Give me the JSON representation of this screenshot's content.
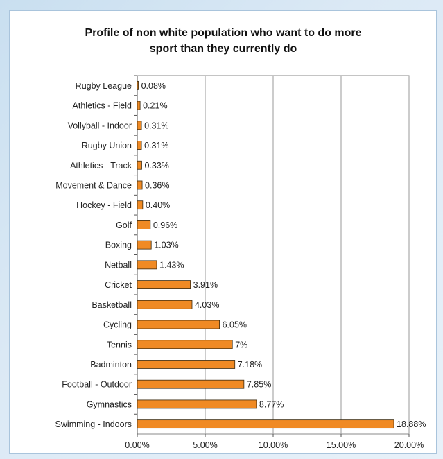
{
  "chart_data": {
    "type": "bar",
    "orientation": "horizontal",
    "title": "Profile of non white population who want to do more sport than they currently do",
    "title_lines": [
      "Profile of non white population who want to do more",
      "sport than they currently do"
    ],
    "categories": [
      "Rugby League",
      "Athletics - Field",
      "Vollyball - Indoor",
      "Rugby Union",
      "Athletics - Track",
      "Movement & Dance",
      "Hockey - Field",
      "Golf",
      "Boxing",
      "Netball",
      "Cricket",
      "Basketball",
      "Cycling",
      "Tennis",
      "Badminton",
      "Football - Outdoor",
      "Gymnastics",
      "Swimming - Indoors"
    ],
    "values": [
      0.08,
      0.21,
      0.31,
      0.31,
      0.33,
      0.36,
      0.4,
      0.96,
      1.03,
      1.43,
      3.91,
      4.03,
      6.05,
      7,
      7.18,
      7.85,
      8.77,
      18.88
    ],
    "data_labels": [
      "0.08%",
      "0.21%",
      "0.31%",
      "0.31%",
      "0.33%",
      "0.36%",
      "0.40%",
      "0.96%",
      "1.03%",
      "1.43%",
      "3.91%",
      "4.03%",
      "6.05%",
      "7%",
      "7.18%",
      "7.85%",
      "8.77%",
      "18.88%"
    ],
    "x_ticks": [
      0,
      5,
      10,
      15,
      20
    ],
    "x_tick_labels": [
      "0.00%",
      "5.00%",
      "10.00%",
      "15.00%",
      "20.00%"
    ],
    "xlim": [
      0,
      20
    ],
    "xlabel": "",
    "ylabel": "",
    "grid": "vertical",
    "legend": "none",
    "bar_color": "#f08a24",
    "bar_edge_color": "#3a2a10"
  }
}
